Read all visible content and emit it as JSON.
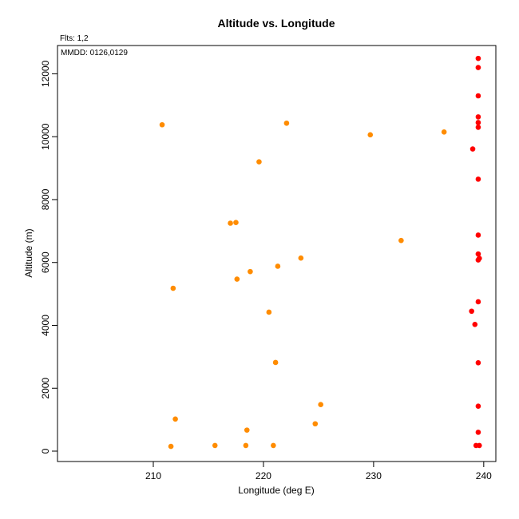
{
  "chart_data": {
    "type": "scatter",
    "title": "Altitude vs. Longitude",
    "xlabel": "Longitude (deg E)",
    "ylabel": "Altitude (m)",
    "annotations": [
      "Flts: 1,2",
      "MMDD: 0126,0129"
    ],
    "xlim": [
      201.3,
      241.1
    ],
    "ylim": [
      -330,
      12900
    ],
    "xticks": [
      210,
      220,
      230,
      240
    ],
    "yticks": [
      0,
      2000,
      4000,
      6000,
      8000,
      10000,
      12000
    ],
    "grid": false,
    "colors": {
      "orange": "#ff8c00",
      "red": "#ff0000"
    },
    "series": [
      {
        "color": "#ff8c00",
        "points": [
          {
            "x": 210.8,
            "y": 10380
          },
          {
            "x": 222.1,
            "y": 10430
          },
          {
            "x": 229.7,
            "y": 10060
          },
          {
            "x": 236.4,
            "y": 10150
          },
          {
            "x": 219.6,
            "y": 9200
          },
          {
            "x": 217.0,
            "y": 7250
          },
          {
            "x": 217.5,
            "y": 7270
          },
          {
            "x": 232.5,
            "y": 6700
          },
          {
            "x": 223.4,
            "y": 6140
          },
          {
            "x": 221.3,
            "y": 5880
          },
          {
            "x": 218.8,
            "y": 5710
          },
          {
            "x": 217.6,
            "y": 5470
          },
          {
            "x": 211.8,
            "y": 5180
          },
          {
            "x": 220.5,
            "y": 4420
          },
          {
            "x": 221.1,
            "y": 2820
          },
          {
            "x": 225.2,
            "y": 1480
          },
          {
            "x": 212.0,
            "y": 1020
          },
          {
            "x": 224.7,
            "y": 870
          },
          {
            "x": 218.5,
            "y": 670
          },
          {
            "x": 211.6,
            "y": 150
          },
          {
            "x": 215.6,
            "y": 180
          },
          {
            "x": 218.4,
            "y": 180
          },
          {
            "x": 220.9,
            "y": 180
          }
        ]
      },
      {
        "color": "#ff0000",
        "points": [
          {
            "x": 239.5,
            "y": 12490
          },
          {
            "x": 239.5,
            "y": 12200
          },
          {
            "x": 239.5,
            "y": 11300
          },
          {
            "x": 239.5,
            "y": 10630
          },
          {
            "x": 239.5,
            "y": 10450
          },
          {
            "x": 239.5,
            "y": 10300
          },
          {
            "x": 239.0,
            "y": 9610
          },
          {
            "x": 239.5,
            "y": 8650
          },
          {
            "x": 239.5,
            "y": 6870
          },
          {
            "x": 239.5,
            "y": 6270
          },
          {
            "x": 239.6,
            "y": 6130
          },
          {
            "x": 239.5,
            "y": 6080
          },
          {
            "x": 238.9,
            "y": 4450
          },
          {
            "x": 239.5,
            "y": 4750
          },
          {
            "x": 239.2,
            "y": 4030
          },
          {
            "x": 239.5,
            "y": 2810
          },
          {
            "x": 239.5,
            "y": 1430
          },
          {
            "x": 239.5,
            "y": 600
          },
          {
            "x": 239.3,
            "y": 180
          },
          {
            "x": 239.6,
            "y": 180
          }
        ]
      }
    ]
  }
}
